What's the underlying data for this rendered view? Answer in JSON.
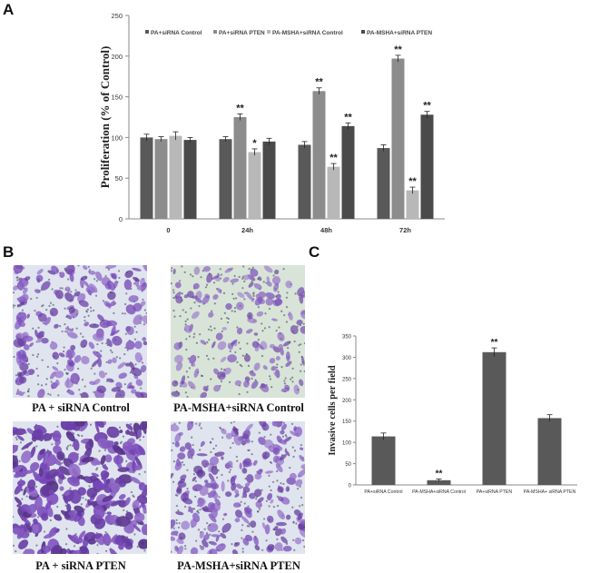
{
  "panels": {
    "a": "A",
    "b": "B",
    "c": "C"
  },
  "colors": {
    "series": [
      "#595959",
      "#8c8c8c",
      "#b8b8b8",
      "#4a4a4a"
    ],
    "axis": "#8a8a8a",
    "stain_purple": "#6a4fa3",
    "stain_background": "#dfe4ef",
    "stain_background_green": "#d8e4d8"
  },
  "chart_data": [
    {
      "id": "A",
      "type": "bar",
      "categories": [
        "0",
        "24h",
        "48h",
        "72h"
      ],
      "series": [
        {
          "name": "PA+siRNA Control",
          "values": [
            100,
            98,
            91,
            87
          ],
          "errors": [
            4,
            3,
            4,
            4
          ]
        },
        {
          "name": "PA+siRNA PTEN",
          "values": [
            98,
            125,
            157,
            197
          ],
          "errors": [
            3,
            4,
            4,
            4
          ]
        },
        {
          "name": "PA-MSHA+siRNA Control",
          "values": [
            102,
            82,
            64,
            35
          ],
          "errors": [
            5,
            4,
            4,
            4
          ]
        },
        {
          "name": "PA-MSHA+siRNA PTEN",
          "values": [
            97,
            95,
            114,
            128
          ],
          "errors": [
            3,
            4,
            4,
            4
          ]
        }
      ],
      "annotations": [
        [
          "",
          "",
          "",
          ""
        ],
        [
          "",
          "**",
          "*",
          ""
        ],
        [
          "",
          "**",
          "**",
          "**"
        ],
        [
          "",
          "**",
          "**",
          "**"
        ]
      ],
      "xlabel": "",
      "ylabel": "Proliferation (% of Control)",
      "ylim": [
        0,
        250
      ],
      "yticks": [
        "0",
        "50",
        "100",
        "150",
        "200",
        "250"
      ],
      "legend_position": "top"
    },
    {
      "id": "C",
      "type": "bar",
      "categories": [
        "PA+siRNA Control",
        "PA-MSHA+siRNA Control",
        "PA+siRNA PTEN",
        "PA-MSHA+ siRNA PTEN"
      ],
      "values": [
        114,
        11,
        312,
        157
      ],
      "errors": [
        8,
        3,
        10,
        8
      ],
      "annotations": [
        "",
        "**",
        "**",
        ""
      ],
      "xlabel": "",
      "ylabel": "Invasive cells per field",
      "ylim": [
        0,
        350
      ],
      "yticks": [
        "0",
        "50",
        "100",
        "150",
        "200",
        "250",
        "300",
        "350"
      ]
    }
  ],
  "micrographs": [
    {
      "caption": "PA + siRNA Control",
      "density": 0.55,
      "purple": 0.5
    },
    {
      "caption": "PA-MSHA+siRNA Control",
      "density": 0.35,
      "purple": 0.3
    },
    {
      "caption": "PA + siRNA PTEN",
      "density": 0.95,
      "purple": 0.9
    },
    {
      "caption": "PA-MSHA+siRNA PTEN",
      "density": 0.6,
      "purple": 0.45
    }
  ]
}
